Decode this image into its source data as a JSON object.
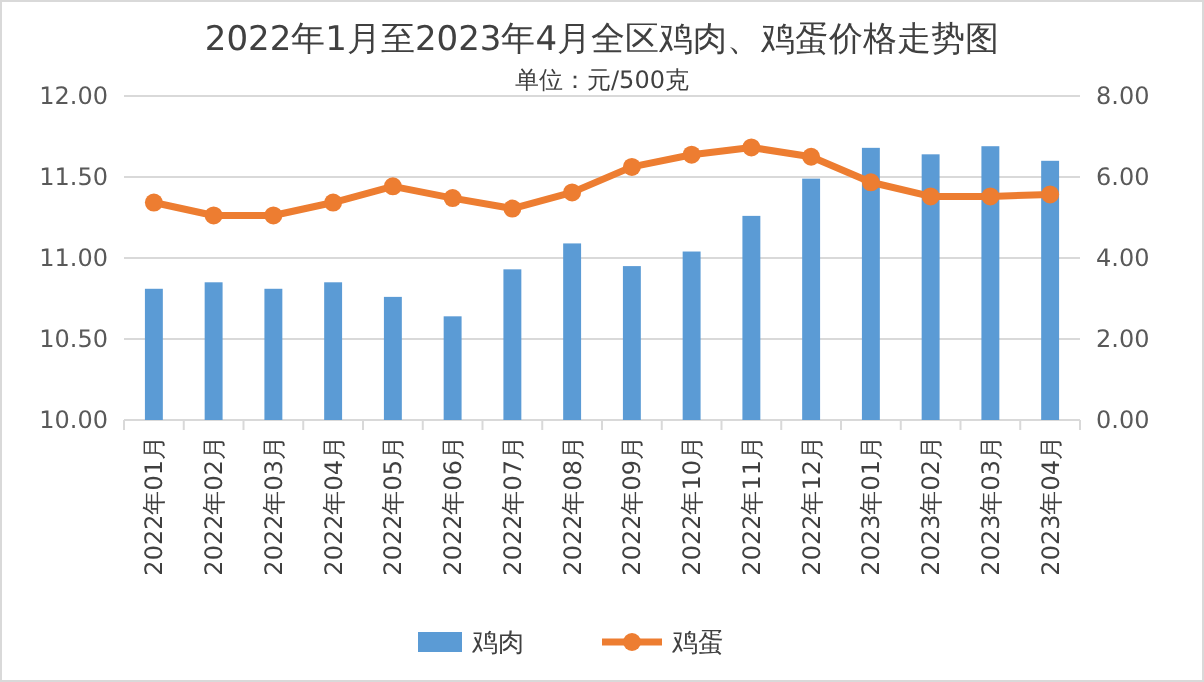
{
  "chart_data": {
    "type": "bar",
    "title": "2022年1月至2023年4月全区鸡肉、鸡蛋价格走势图",
    "subtitle": "单位：元/500克",
    "categories": [
      "2022年01月",
      "2022年02月",
      "2022年03月",
      "2022年04月",
      "2022年05月",
      "2022年06月",
      "2022年07月",
      "2022年08月",
      "2022年09月",
      "2022年10月",
      "2022年11月",
      "2022年12月",
      "2023年01月",
      "2023年02月",
      "2023年03月",
      "2023年04月"
    ],
    "series": [
      {
        "name": "鸡肉",
        "color": "#5b9bd5",
        "values": [
          10.81,
          10.85,
          10.81,
          10.85,
          10.76,
          10.64,
          10.93,
          11.09,
          10.95,
          11.04,
          11.26,
          11.49,
          11.68,
          11.64,
          11.69,
          11.6
        ]
      },
      {
        "name": "鸡蛋",
        "type": "line",
        "axis": "y2",
        "color": "#ed7d31",
        "marker": "circle",
        "values": [
          5.37,
          5.05,
          5.05,
          5.37,
          5.77,
          5.48,
          5.22,
          5.62,
          6.25,
          6.55,
          6.73,
          6.5,
          5.87,
          5.52,
          5.52,
          5.57
        ]
      }
    ],
    "ylim": [
      10,
      12
    ],
    "yticks": [
      {
        "value": 10,
        "label": "10.00"
      },
      {
        "value": 10.5,
        "label": "10.50"
      },
      {
        "value": 11,
        "label": "11.00"
      },
      {
        "value": 11.5,
        "label": "11.50"
      },
      {
        "value": 12,
        "label": "12.00"
      }
    ],
    "y2lim": [
      0,
      8
    ],
    "y2ticks": [
      {
        "value": 0,
        "label": "0.00"
      },
      {
        "value": 2,
        "label": "2.00"
      },
      {
        "value": 4,
        "label": "4.00"
      },
      {
        "value": 6,
        "label": "6.00"
      },
      {
        "value": 8,
        "label": "8.00"
      }
    ],
    "grid": "y",
    "legend": "bottom"
  }
}
